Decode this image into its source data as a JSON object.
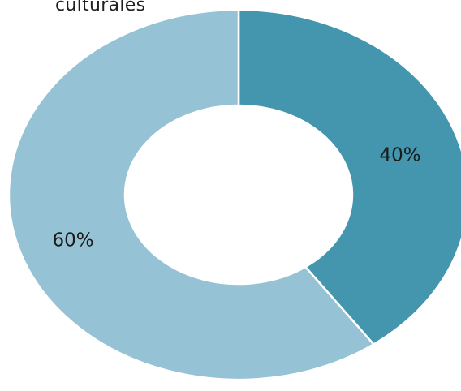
{
  "chart_data": {
    "type": "pie",
    "donut": true,
    "title": "culturales",
    "categories": [
      "",
      ""
    ],
    "values": [
      40,
      60
    ],
    "labels": [
      "40%",
      "60%"
    ],
    "colors": [
      "#4496af",
      "#95c2d4"
    ],
    "legend": "none"
  }
}
